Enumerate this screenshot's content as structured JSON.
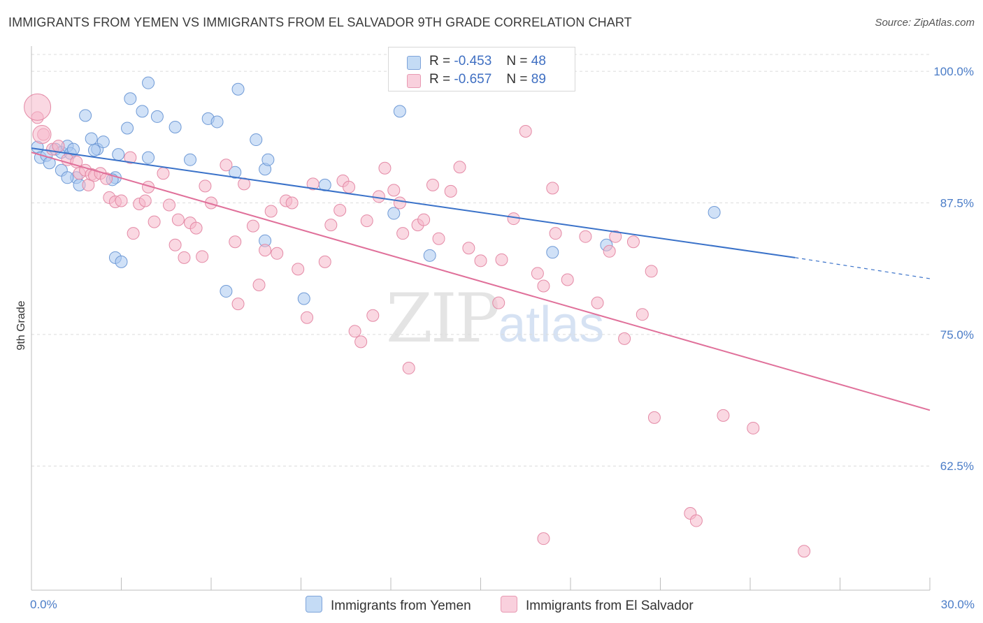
{
  "title": "IMMIGRANTS FROM YEMEN VS IMMIGRANTS FROM EL SALVADOR 9TH GRADE CORRELATION CHART",
  "source": "Source: ZipAtlas.com",
  "watermark": {
    "zip": "ZIP",
    "atlas": "atlas"
  },
  "stats": [
    {
      "r_label": "R =",
      "r": "-0.453",
      "n_label": "N =",
      "n": "48",
      "color": "#a9c8f0"
    },
    {
      "r_label": "R =",
      "r": "-0.657",
      "n_label": "N =",
      "n": "89",
      "color": "#f6b8cb"
    }
  ],
  "legend": [
    {
      "label": "Immigrants from Yemen",
      "color": "#a9c8f0"
    },
    {
      "label": "Immigrants from El Salvador",
      "color": "#f6b8cb"
    }
  ],
  "chart_data": {
    "type": "scatter",
    "xlabel": "",
    "ylabel": "9th Grade",
    "xlim": [
      0,
      30
    ],
    "ylim": [
      50.7,
      101.6
    ],
    "x_tick_labels": [
      {
        "value": 0,
        "label": "0.0%"
      },
      {
        "value": 30,
        "label": "30.0%"
      }
    ],
    "y_tick_labels": [
      {
        "value": 100,
        "label": "100.0%"
      },
      {
        "value": 87.5,
        "label": "87.5%"
      },
      {
        "value": 75,
        "label": "75.0%"
      },
      {
        "value": 62.5,
        "label": "62.5%"
      }
    ],
    "grid": true,
    "series": [
      {
        "name": "Immigrants from Yemen",
        "color": "#a9c8f0",
        "stroke": "#6f9ad6",
        "line_color": "#3a72c9",
        "trend": {
          "x0": 0,
          "y0": 92.7,
          "x1": 25.5,
          "y1": 82.3,
          "x_dash_end": 30,
          "y_dash_end": 80.3
        },
        "points": [
          [
            0.2,
            92.8
          ],
          [
            0.3,
            91.8
          ],
          [
            0.5,
            92.0
          ],
          [
            0.6,
            91.3
          ],
          [
            0.8,
            92.6
          ],
          [
            1.0,
            90.6
          ],
          [
            1.0,
            92.3
          ],
          [
            1.2,
            92.9
          ],
          [
            1.5,
            89.9
          ],
          [
            1.2,
            89.9
          ],
          [
            1.3,
            92.2
          ],
          [
            1.4,
            92.6
          ],
          [
            1.6,
            89.2
          ],
          [
            1.8,
            95.8
          ],
          [
            2.0,
            93.6
          ],
          [
            2.2,
            92.6
          ],
          [
            2.1,
            92.5
          ],
          [
            2.4,
            93.3
          ],
          [
            2.8,
            89.9
          ],
          [
            2.7,
            89.7
          ],
          [
            2.9,
            92.1
          ],
          [
            2.8,
            82.3
          ],
          [
            3.0,
            81.9
          ],
          [
            3.2,
            94.6
          ],
          [
            3.3,
            97.4
          ],
          [
            3.7,
            96.2
          ],
          [
            3.9,
            91.8
          ],
          [
            3.9,
            98.9
          ],
          [
            4.2,
            95.7
          ],
          [
            4.8,
            94.7
          ],
          [
            5.3,
            91.6
          ],
          [
            5.9,
            95.5
          ],
          [
            6.2,
            95.2
          ],
          [
            6.5,
            79.1
          ],
          [
            6.9,
            98.3
          ],
          [
            6.8,
            90.4
          ],
          [
            7.5,
            93.5
          ],
          [
            7.8,
            83.9
          ],
          [
            7.8,
            90.7
          ],
          [
            7.9,
            91.6
          ],
          [
            9.1,
            78.4
          ],
          [
            9.8,
            89.2
          ],
          [
            12.1,
            86.5
          ],
          [
            12.3,
            96.2
          ],
          [
            13.3,
            82.5
          ],
          [
            17.4,
            82.8
          ],
          [
            19.2,
            83.5
          ],
          [
            22.8,
            86.6
          ]
        ],
        "sizes": []
      },
      {
        "name": "Immigrants from El Salvador",
        "color": "#f6b8cb",
        "stroke": "#e48aa6",
        "line_color": "#e0709a",
        "trend": {
          "x0": 0,
          "y0": 92.3,
          "x1": 30,
          "y1": 67.8
        },
        "points": [
          [
            0.2,
            95.6
          ],
          [
            0.4,
            94.0
          ],
          [
            0.7,
            92.6
          ],
          [
            0.9,
            92.9
          ],
          [
            1.2,
            91.6
          ],
          [
            1.5,
            91.4
          ],
          [
            1.6,
            90.3
          ],
          [
            1.8,
            90.6
          ],
          [
            1.9,
            89.2
          ],
          [
            2.0,
            90.2
          ],
          [
            2.1,
            90.1
          ],
          [
            2.3,
            90.3
          ],
          [
            2.5,
            89.8
          ],
          [
            2.6,
            88.0
          ],
          [
            2.8,
            87.6
          ],
          [
            3.0,
            87.7
          ],
          [
            3.3,
            91.8
          ],
          [
            3.4,
            84.6
          ],
          [
            3.6,
            87.4
          ],
          [
            3.8,
            87.7
          ],
          [
            3.9,
            89.0
          ],
          [
            4.1,
            85.7
          ],
          [
            4.4,
            90.3
          ],
          [
            4.6,
            87.3
          ],
          [
            4.8,
            83.5
          ],
          [
            4.9,
            85.9
          ],
          [
            5.1,
            82.3
          ],
          [
            5.3,
            85.6
          ],
          [
            5.5,
            85.1
          ],
          [
            5.7,
            82.4
          ],
          [
            5.8,
            89.1
          ],
          [
            6.0,
            87.5
          ],
          [
            6.5,
            91.1
          ],
          [
            6.8,
            83.8
          ],
          [
            6.9,
            77.9
          ],
          [
            7.1,
            89.3
          ],
          [
            7.4,
            85.3
          ],
          [
            7.6,
            79.7
          ],
          [
            7.8,
            83.0
          ],
          [
            8.0,
            86.7
          ],
          [
            8.2,
            82.7
          ],
          [
            8.5,
            87.7
          ],
          [
            8.7,
            87.5
          ],
          [
            8.9,
            81.2
          ],
          [
            9.2,
            76.6
          ],
          [
            9.4,
            89.3
          ],
          [
            9.8,
            81.9
          ],
          [
            10.0,
            85.4
          ],
          [
            10.3,
            86.8
          ],
          [
            10.4,
            89.6
          ],
          [
            10.6,
            89.0
          ],
          [
            10.8,
            75.3
          ],
          [
            11.0,
            74.3
          ],
          [
            11.2,
            85.8
          ],
          [
            11.4,
            76.8
          ],
          [
            11.6,
            88.1
          ],
          [
            11.8,
            90.8
          ],
          [
            12.1,
            88.7
          ],
          [
            12.3,
            87.5
          ],
          [
            12.4,
            84.6
          ],
          [
            12.6,
            71.8
          ],
          [
            12.9,
            85.4
          ],
          [
            13.1,
            85.9
          ],
          [
            13.4,
            89.2
          ],
          [
            13.6,
            84.1
          ],
          [
            14.0,
            88.6
          ],
          [
            14.3,
            90.9
          ],
          [
            14.6,
            83.2
          ],
          [
            15.0,
            82.0
          ],
          [
            15.6,
            78.0
          ],
          [
            15.7,
            82.1
          ],
          [
            16.1,
            86.0
          ],
          [
            16.5,
            94.3
          ],
          [
            16.9,
            80.8
          ],
          [
            17.1,
            79.6
          ],
          [
            17.4,
            88.9
          ],
          [
            17.5,
            84.6
          ],
          [
            17.9,
            80.2
          ],
          [
            18.5,
            84.3
          ],
          [
            18.9,
            78.0
          ],
          [
            19.3,
            82.9
          ],
          [
            19.5,
            84.3
          ],
          [
            19.8,
            74.6
          ],
          [
            20.1,
            83.8
          ],
          [
            20.4,
            76.9
          ],
          [
            20.7,
            81.0
          ],
          [
            20.8,
            67.1
          ],
          [
            22.0,
            58.0
          ],
          [
            25.8,
            54.4
          ]
        ],
        "extra_points": [
          [
            22.2,
            57.3
          ],
          [
            23.1,
            67.3
          ],
          [
            24.1,
            66.1
          ],
          [
            17.1,
            55.6
          ]
        ]
      }
    ]
  },
  "axis": {
    "ylabel": "9th Grade",
    "x_min_label": "0.0%",
    "x_max_label": "30.0%"
  }
}
